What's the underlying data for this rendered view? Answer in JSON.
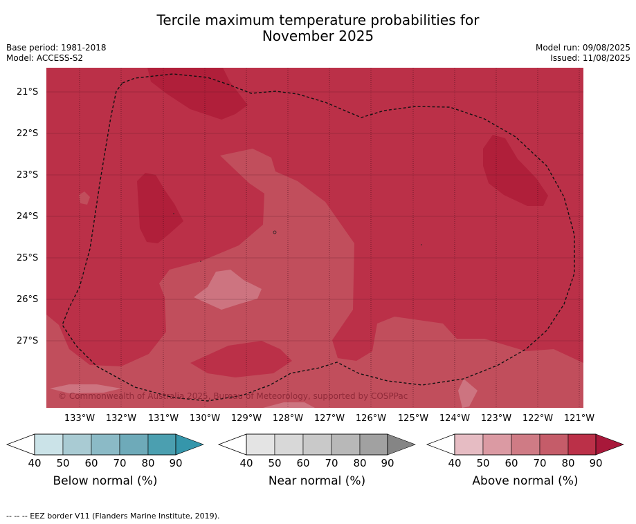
{
  "header": {
    "title_line1": "Tercile maximum temperature probabilities for",
    "title_line2": "November 2025",
    "base_period": "Base period: 1981-2018",
    "model": "Model: ACCESS-S2",
    "model_run": "Model run: 09/08/2025",
    "issued": "Issued: 11/08/2025"
  },
  "map": {
    "lat_labels": [
      "21°S",
      "22°S",
      "23°S",
      "24°S",
      "25°S",
      "26°S",
      "27°S"
    ],
    "lon_labels": [
      "133°W",
      "132°W",
      "131°W",
      "130°W",
      "129°W",
      "128°W",
      "127°W",
      "126°W",
      "125°W",
      "124°W",
      "123°W",
      "122°W",
      "121°W"
    ],
    "copyright": "© Commonwealth of Australia 2025, Bureau of Meteorology, supported by COSPPac",
    "colors": {
      "above_80": "#bb3048",
      "above_90": "#b01f3a",
      "above_70": "#c14e5c",
      "above_60": "#cd7480"
    }
  },
  "colorbars": {
    "ticks": [
      "40",
      "50",
      "60",
      "70",
      "80",
      "90"
    ],
    "below": {
      "label": "Below normal (%)",
      "colors": [
        "#cbe3e8",
        "#a9cbd3",
        "#8bbac6",
        "#6eaab9",
        "#4b9fb0",
        "#3596ab"
      ]
    },
    "near": {
      "label": "Near normal (%)",
      "colors": [
        "#e4e4e4",
        "#d8d8d8",
        "#c9c9c9",
        "#b8b8b8",
        "#a1a1a1",
        "#858585"
      ]
    },
    "above": {
      "label": "Above normal (%)",
      "colors": [
        "#e6bcc3",
        "#db9aa3",
        "#cf7b85",
        "#c55c69",
        "#bb3048",
        "#a8183a"
      ]
    }
  },
  "footer": {
    "legend": "--  --  -- EEZ border V11 (Flanders Marine Institute, 2019)."
  }
}
